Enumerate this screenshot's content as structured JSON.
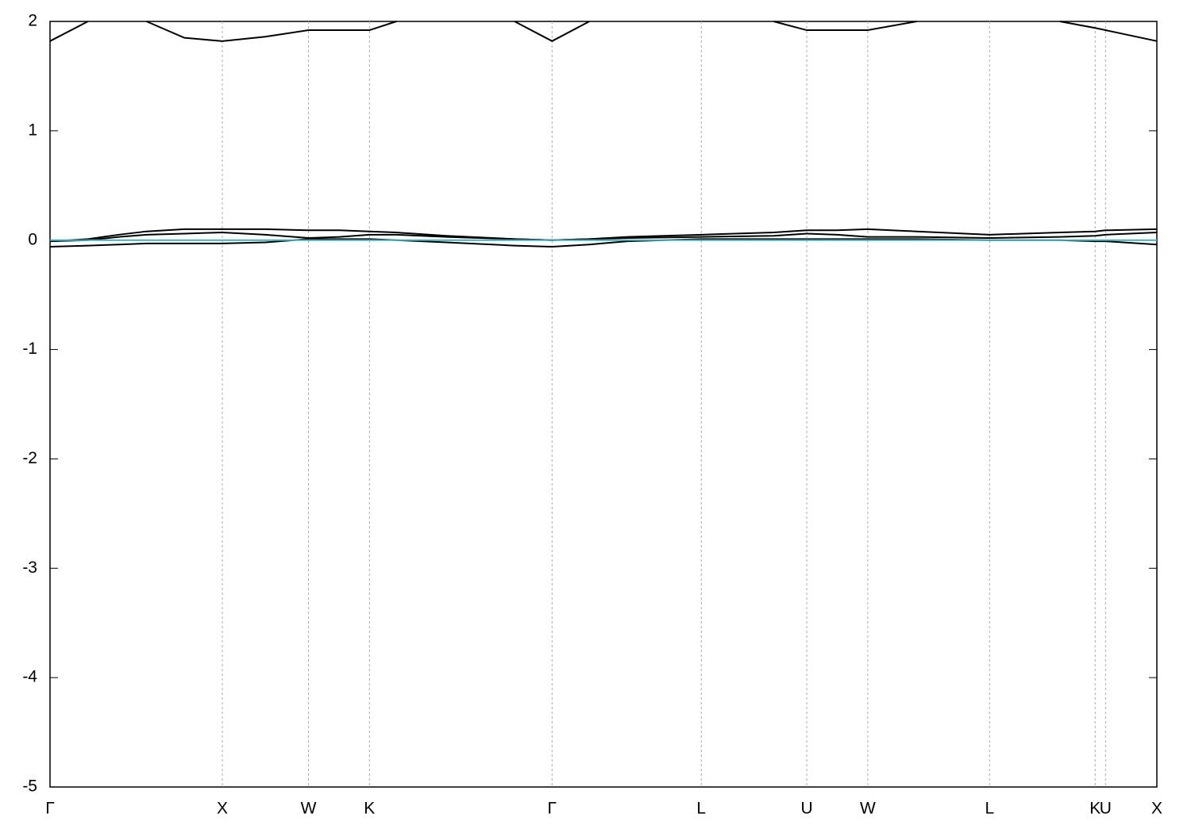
{
  "chart_data": {
    "type": "line",
    "x": [
      0,
      0.22,
      0.4,
      0.56,
      0.78,
      1,
      1.25,
      1.5,
      1.68,
      1.854,
      2.01,
      2.3,
      2.696,
      2.914,
      3.13,
      3.35,
      3.78,
      4.2,
      4.392,
      4.57,
      4.746,
      5.03,
      5.453,
      5.862,
      6.066,
      6.126,
      6.424
    ],
    "series": [
      {
        "color": "#000000",
        "values": [
          1.82,
          2,
          null,
          2,
          1.85,
          1.82,
          1.86,
          1.92,
          1.92,
          1.92,
          2,
          null,
          2,
          1.82,
          2,
          null,
          null,
          2,
          1.92,
          1.92,
          1.92,
          2,
          null,
          2,
          1.94,
          1.92,
          1.82
        ]
      },
      {
        "color": "#000000",
        "values": [
          -0.01,
          0.01,
          0.05,
          0.08,
          0.1,
          0.1,
          0.1,
          0.09,
          0.09,
          0.08,
          0.07,
          0.04,
          0.01,
          0,
          0.01,
          0.03,
          0.05,
          0.07,
          0.09,
          0.09,
          0.1,
          0.08,
          0.05,
          0.07,
          0.08,
          0.09,
          0.1
        ]
      },
      {
        "color": "#000000",
        "values": [
          -0.01,
          0,
          0.03,
          0.05,
          0.06,
          0.07,
          0.05,
          0.02,
          0.03,
          0.05,
          0.05,
          0.03,
          0.01,
          0,
          0.01,
          0.02,
          0.03,
          0.04,
          0.06,
          0.05,
          0.03,
          0.03,
          0.02,
          0.03,
          0.04,
          0.05,
          0.07
        ]
      },
      {
        "color": "#000000",
        "values": [
          -0.06,
          -0.05,
          -0.04,
          -0.03,
          -0.03,
          -0.03,
          -0.02,
          0.01,
          0.01,
          0.01,
          0,
          -0.02,
          -0.05,
          -0.06,
          -0.04,
          -0.01,
          0.01,
          0.01,
          0.01,
          0.01,
          0.01,
          0.01,
          0,
          0,
          -0.01,
          -0.01,
          -0.04
        ]
      },
      {
        "color": "#40b0c0",
        "values": [
          0,
          0,
          0,
          0,
          0,
          0,
          0,
          0,
          0,
          0,
          0,
          0,
          0,
          0,
          0,
          0,
          0,
          0,
          0,
          0,
          0,
          0,
          0,
          0,
          0,
          0,
          0
        ]
      }
    ],
    "xlim": [
      0,
      6.424
    ],
    "ylim": [
      -5,
      2
    ],
    "yticks": [
      2,
      1,
      0,
      -1,
      -2,
      -3,
      -4,
      -5
    ],
    "xticks": [
      {
        "value": 0,
        "label": "Γ"
      },
      {
        "value": 1,
        "label": "X"
      },
      {
        "value": 1.5,
        "label": "W"
      },
      {
        "value": 1.854,
        "label": "K"
      },
      {
        "value": 2.914,
        "label": "Γ"
      },
      {
        "value": 3.78,
        "label": "L"
      },
      {
        "value": 4.392,
        "label": "U"
      },
      {
        "value": 4.746,
        "label": "W"
      },
      {
        "value": 5.453,
        "label": "L"
      },
      {
        "value": 6.066,
        "label": "K"
      },
      {
        "value": 6.126,
        "label": "U"
      },
      {
        "value": 6.424,
        "label": "X"
      }
    ],
    "xgrid": true
  }
}
